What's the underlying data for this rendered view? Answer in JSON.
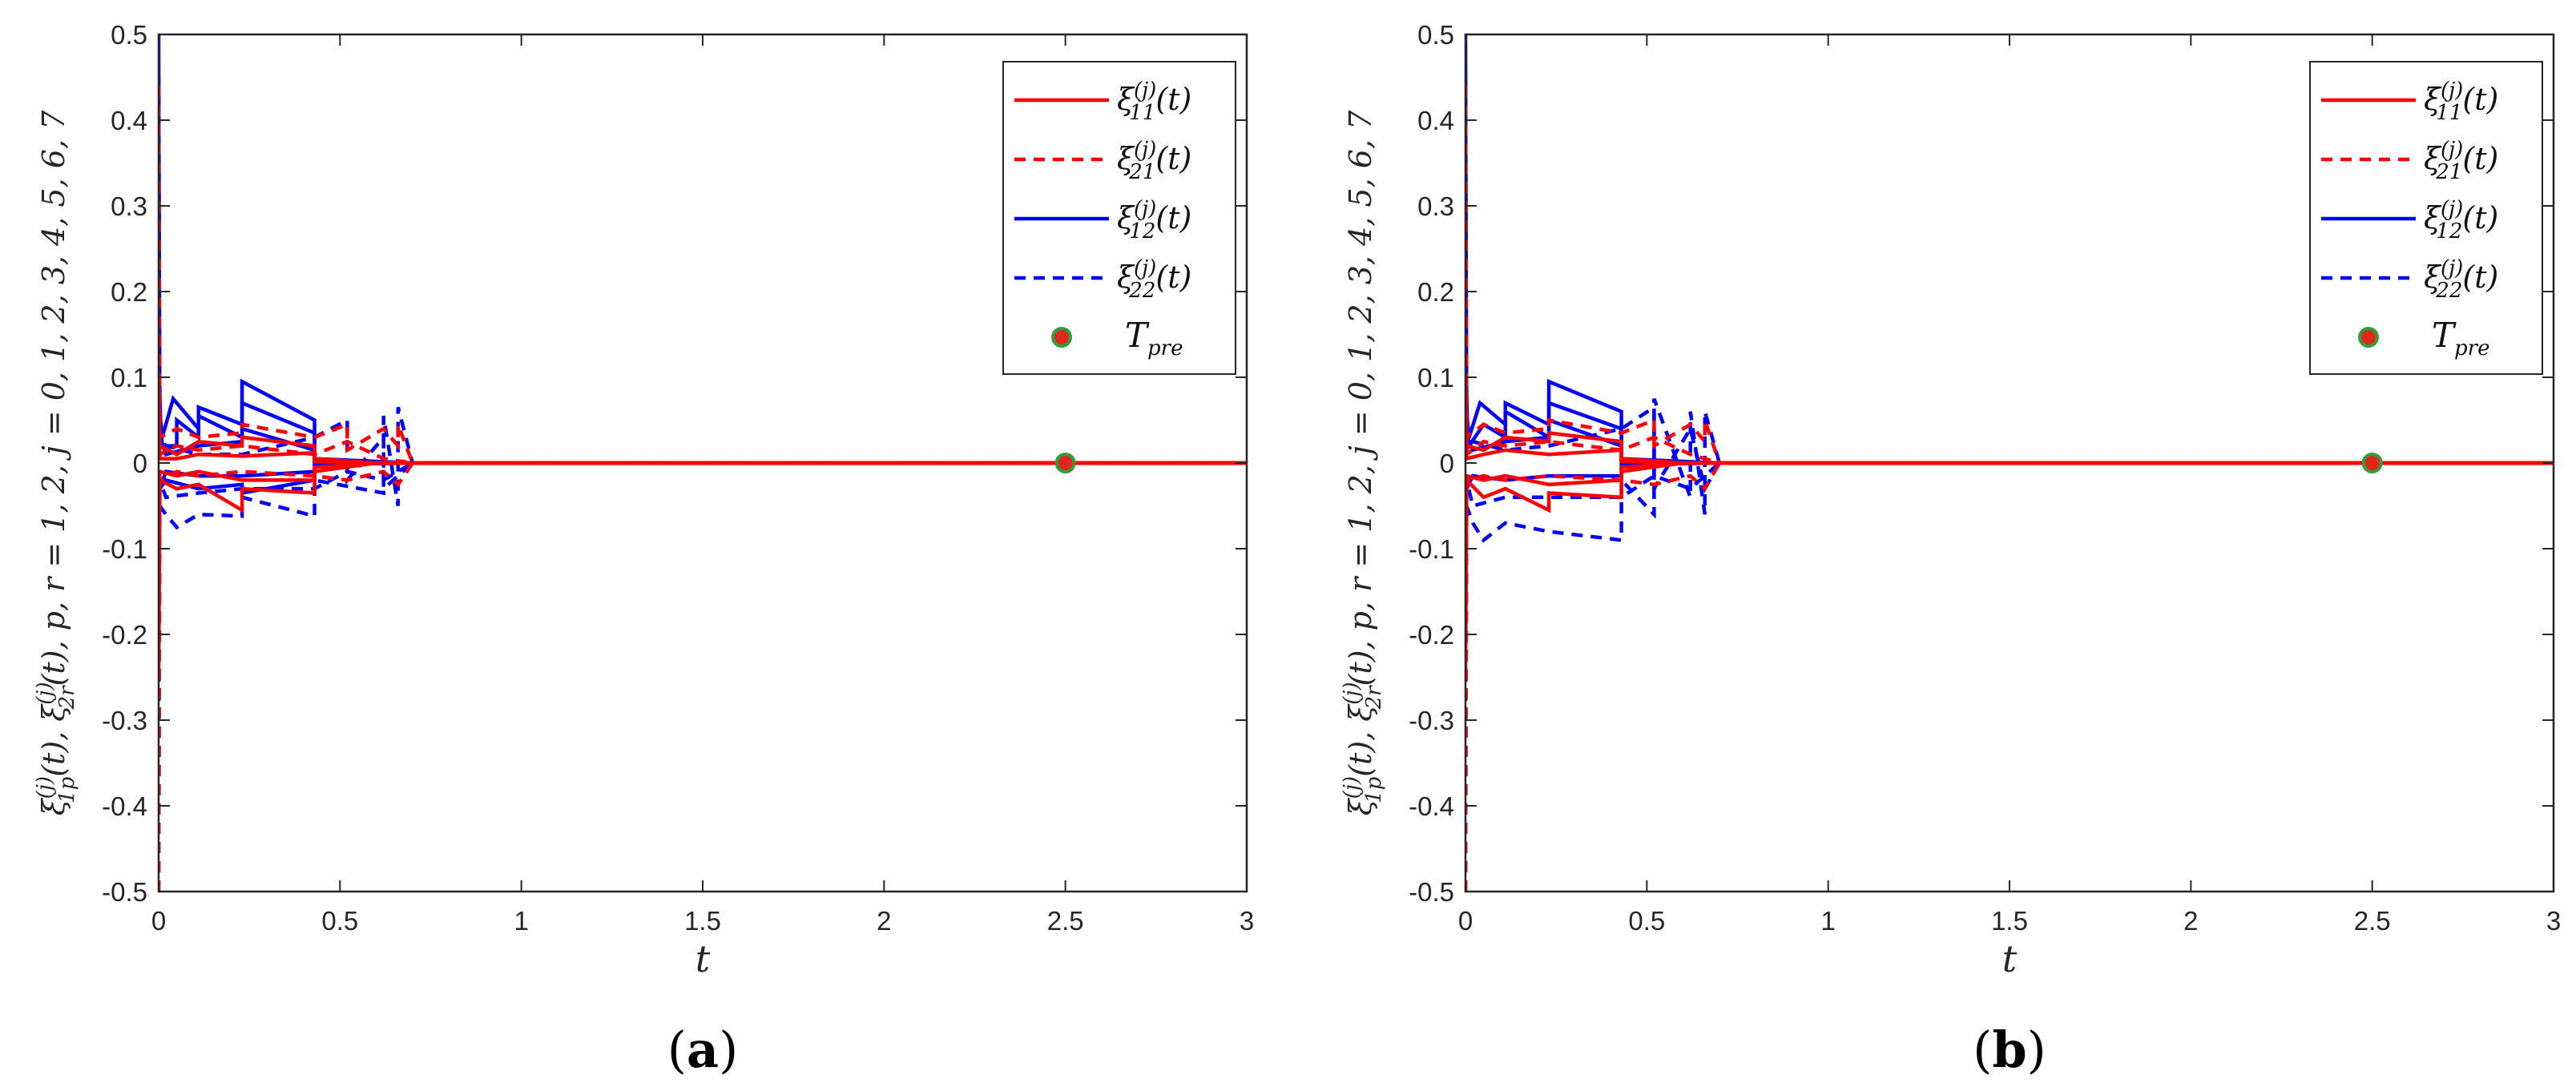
{
  "colors": {
    "red": "#ff0000",
    "blue": "#0000ff",
    "marker_fill": "#e1271b",
    "marker_edge": "#2e9e3e"
  },
  "chart_data": [
    {
      "type": "line",
      "panel_label": "(a)",
      "panel_letter": "a",
      "xlabel": "t",
      "ylabel": "ξ1p(j)(t), ξ2r(j)(t),  p, r = 1, 2,  j = 0, 1, 2, 3, 4, 5, 6, 7",
      "xlim": [
        0,
        3
      ],
      "ylim": [
        -0.5,
        0.5
      ],
      "xticks": [
        "0",
        "0.5",
        "1",
        "1.5",
        "2",
        "2.5",
        "3"
      ],
      "yticks": [
        "-0.5",
        "-0.4",
        "-0.3",
        "-0.2",
        "-0.1",
        "0",
        "0.1",
        "0.2",
        "0.3",
        "0.4",
        "0.5"
      ],
      "legend_position": "top-right",
      "legend": [
        "ξ11(j)(t)",
        "ξ21(j)(t)",
        "ξ12(j)(t)",
        "ξ22(j)(t)",
        "Tpre"
      ],
      "marker": {
        "name": "Tpre",
        "x": 2.5,
        "y": 0
      },
      "series": [
        {
          "color": "#0000ff",
          "dash": "solid",
          "x": [
            0,
            0.002,
            0.005,
            0.01,
            0.01,
            0.04,
            0.11,
            0.11,
            0.23,
            0.23,
            0.43,
            0.43,
            0.7,
            3
          ],
          "y": [
            0.5,
            0.1,
            0.05,
            0.03,
            0.03,
            0.075,
            0.04,
            0.065,
            0.045,
            0.095,
            0.05,
            0.003,
            0,
            0
          ]
        },
        {
          "color": "#0000ff",
          "dash": "solid",
          "x": [
            0,
            0.003,
            0.01,
            0.05,
            0.05,
            0.11,
            0.11,
            0.23,
            0.23,
            0.43,
            0.43,
            0.7,
            3
          ],
          "y": [
            0.45,
            0.06,
            0.02,
            0.02,
            0.05,
            0.03,
            0.055,
            0.03,
            0.07,
            0.035,
            0.005,
            0,
            0
          ]
        },
        {
          "color": "#0000ff",
          "dash": "solid",
          "x": [
            0,
            0.003,
            0.02,
            0.11,
            0.23,
            0.23,
            0.43,
            0.43,
            0.7,
            3
          ],
          "y": [
            0.3,
            0.03,
            0.01,
            0.02,
            0.025,
            0.04,
            0.015,
            0.002,
            0,
            0
          ]
        },
        {
          "color": "#0000ff",
          "dash": "solid",
          "x": [
            0,
            0.003,
            0.02,
            0.11,
            0.23,
            0.43,
            0.43,
            0.7,
            3
          ],
          "y": [
            -0.2,
            -0.03,
            -0.01,
            -0.015,
            -0.015,
            -0.01,
            -0.002,
            0,
            0
          ]
        },
        {
          "color": "#0000ff",
          "dash": "solid",
          "x": [
            0,
            0.003,
            0.02,
            0.11,
            0.23,
            0.23,
            0.43,
            0.43,
            0.7,
            3
          ],
          "y": [
            -0.1,
            -0.03,
            -0.02,
            -0.03,
            -0.025,
            -0.035,
            -0.02,
            0,
            0,
            0
          ]
        },
        {
          "color": "#0000ff",
          "dash": "dashed",
          "x": [
            0,
            0.003,
            0.02,
            0.05,
            0.11,
            0.23,
            0.23,
            0.43,
            0.43,
            0.62,
            0.62,
            0.66,
            0.66,
            0.7,
            3
          ],
          "y": [
            -0.5,
            -0.05,
            -0.06,
            -0.075,
            -0.06,
            -0.062,
            -0.04,
            -0.062,
            -0.02,
            -0.035,
            0.055,
            -0.05,
            0.065,
            0,
            0
          ]
        },
        {
          "color": "#0000ff",
          "dash": "dashed",
          "x": [
            0,
            0.003,
            0.02,
            0.11,
            0.23,
            0.43,
            0.52,
            0.52,
            0.62,
            0.62,
            0.7,
            3
          ],
          "y": [
            0.38,
            0.03,
            0.02,
            0.01,
            0.01,
            0.03,
            0.05,
            -0.02,
            0.03,
            -0.03,
            0,
            0
          ]
        },
        {
          "color": "#0000ff",
          "dash": "dashed",
          "x": [
            0,
            0.003,
            0.02,
            0.11,
            0.23,
            0.43,
            0.52,
            0.62,
            0.7,
            3
          ],
          "y": [
            -0.3,
            -0.02,
            -0.04,
            -0.035,
            -0.03,
            -0.03,
            -0.01,
            -0.02,
            0,
            0
          ]
        },
        {
          "color": "#ff0000",
          "dash": "solid",
          "x": [
            0,
            0.003,
            0.05,
            0.11,
            0.23,
            0.23,
            0.43,
            0.43,
            0.6,
            1.2,
            3
          ],
          "y": [
            0.1,
            0.02,
            0.01,
            0.025,
            0.02,
            0.03,
            0.02,
            0.005,
            0,
            0,
            0
          ]
        },
        {
          "color": "#ff0000",
          "dash": "solid",
          "x": [
            0,
            0.003,
            0.05,
            0.11,
            0.23,
            0.23,
            0.43,
            0.43,
            0.6,
            3
          ],
          "y": [
            -0.25,
            -0.02,
            -0.03,
            -0.025,
            -0.055,
            -0.03,
            -0.035,
            -0.01,
            0,
            0
          ]
        },
        {
          "color": "#ff0000",
          "dash": "solid",
          "x": [
            0,
            0.003,
            0.05,
            0.11,
            0.23,
            0.43,
            0.43,
            0.6,
            3
          ],
          "y": [
            0.05,
            0.005,
            0.005,
            0.01,
            0.008,
            0.012,
            0.002,
            0,
            0
          ]
        },
        {
          "color": "#ff0000",
          "dash": "solid",
          "x": [
            0,
            0.003,
            0.05,
            0.11,
            0.23,
            0.43,
            0.43,
            0.6,
            3
          ],
          "y": [
            -0.08,
            -0.01,
            -0.015,
            -0.01,
            -0.02,
            -0.02,
            -0.005,
            0,
            0
          ]
        },
        {
          "color": "#ff0000",
          "dash": "dashed",
          "x": [
            0,
            0.003,
            0.05,
            0.11,
            0.23,
            0.23,
            0.43,
            0.52,
            0.52,
            0.62,
            0.66,
            0.66,
            0.7,
            3
          ],
          "y": [
            0.44,
            0.03,
            0.04,
            0.03,
            0.035,
            0.045,
            0.03,
            0.045,
            0.015,
            0.04,
            0.02,
            0.045,
            0,
            0
          ]
        },
        {
          "color": "#ff0000",
          "dash": "dashed",
          "x": [
            0,
            0.003,
            0.05,
            0.11,
            0.23,
            0.43,
            0.52,
            0.62,
            0.66,
            0.7,
            3
          ],
          "y": [
            -0.5,
            -0.02,
            -0.01,
            -0.015,
            -0.01,
            -0.015,
            -0.02,
            -0.01,
            -0.025,
            0,
            0
          ]
        },
        {
          "color": "#ff0000",
          "dash": "dashed",
          "x": [
            0,
            0.003,
            0.05,
            0.11,
            0.23,
            0.43,
            0.52,
            0.62,
            0.7,
            3
          ],
          "y": [
            0.15,
            0.01,
            0.02,
            0.015,
            0.02,
            0.01,
            0.025,
            0.005,
            0,
            0
          ]
        }
      ]
    },
    {
      "type": "line",
      "panel_label": "(b)",
      "panel_letter": "b",
      "xlabel": "t",
      "ylabel": "ξ1p(j)(t), ξ2r(j)(t),  p, r = 1, 2,  j = 0, 1, 2, 3, 4, 5, 6, 7",
      "xlim": [
        0,
        3
      ],
      "ylim": [
        -0.5,
        0.5
      ],
      "xticks": [
        "0",
        "0.5",
        "1",
        "1.5",
        "2",
        "2.5",
        "3"
      ],
      "yticks": [
        "-0.5",
        "-0.4",
        "-0.3",
        "-0.2",
        "-0.1",
        "0",
        "0.1",
        "0.2",
        "0.3",
        "0.4",
        "0.5"
      ],
      "legend_position": "top-right",
      "legend": [
        "ξ11(j)(t)",
        "ξ21(j)(t)",
        "ξ12(j)(t)",
        "ξ22(j)(t)",
        "Tpre"
      ],
      "marker": {
        "name": "Tpre",
        "x": 2.5,
        "y": 0
      },
      "series": [
        {
          "color": "#0000ff",
          "dash": "solid",
          "x": [
            0,
            0.002,
            0.005,
            0.01,
            0.04,
            0.11,
            0.11,
            0.23,
            0.23,
            0.43,
            0.43,
            0.7,
            3
          ],
          "y": [
            0.5,
            0.1,
            0.05,
            0.03,
            0.07,
            0.045,
            0.07,
            0.045,
            0.095,
            0.06,
            0.003,
            0,
            0
          ]
        },
        {
          "color": "#0000ff",
          "dash": "solid",
          "x": [
            0,
            0.003,
            0.01,
            0.05,
            0.11,
            0.11,
            0.23,
            0.23,
            0.43,
            0.43,
            0.7,
            3
          ],
          "y": [
            0.45,
            0.06,
            0.02,
            0.045,
            0.03,
            0.06,
            0.03,
            0.07,
            0.04,
            0.005,
            0,
            0
          ]
        },
        {
          "color": "#0000ff",
          "dash": "solid",
          "x": [
            0,
            0.003,
            0.02,
            0.11,
            0.23,
            0.23,
            0.43,
            0.43,
            0.7,
            3
          ],
          "y": [
            0.3,
            0.03,
            0.015,
            0.025,
            0.03,
            0.05,
            0.02,
            0.002,
            0,
            0
          ]
        },
        {
          "color": "#0000ff",
          "dash": "solid",
          "x": [
            0,
            0.003,
            0.02,
            0.11,
            0.23,
            0.43,
            0.43,
            0.7,
            3
          ],
          "y": [
            -0.2,
            -0.03,
            -0.015,
            -0.02,
            -0.015,
            -0.015,
            -0.002,
            0,
            0
          ]
        },
        {
          "color": "#0000ff",
          "dash": "dashed",
          "x": [
            0,
            0.003,
            0.02,
            0.05,
            0.11,
            0.23,
            0.43,
            0.43,
            0.52,
            0.52,
            0.62,
            0.62,
            0.66,
            0.66,
            0.7,
            3
          ],
          "y": [
            -0.5,
            -0.05,
            -0.07,
            -0.09,
            -0.07,
            -0.08,
            -0.09,
            -0.02,
            -0.06,
            0.075,
            -0.04,
            0.06,
            -0.06,
            0.06,
            0,
            0
          ]
        },
        {
          "color": "#0000ff",
          "dash": "dashed",
          "x": [
            0,
            0.003,
            0.02,
            0.11,
            0.23,
            0.43,
            0.52,
            0.52,
            0.62,
            0.66,
            0.7,
            3
          ],
          "y": [
            0.38,
            0.03,
            0.025,
            0.015,
            0.02,
            0.04,
            0.065,
            -0.03,
            0.04,
            -0.03,
            0,
            0
          ]
        },
        {
          "color": "#0000ff",
          "dash": "dashed",
          "x": [
            0,
            0.003,
            0.02,
            0.11,
            0.23,
            0.43,
            0.52,
            0.62,
            0.7,
            3
          ],
          "y": [
            -0.3,
            -0.02,
            -0.05,
            -0.04,
            -0.04,
            -0.04,
            -0.015,
            -0.03,
            0,
            0
          ]
        },
        {
          "color": "#ff0000",
          "dash": "solid",
          "x": [
            0,
            0.003,
            0.05,
            0.11,
            0.23,
            0.23,
            0.43,
            0.43,
            0.6,
            1.2,
            3
          ],
          "y": [
            0.1,
            0.02,
            0.015,
            0.03,
            0.025,
            0.035,
            0.025,
            0.005,
            0,
            0,
            0
          ]
        },
        {
          "color": "#ff0000",
          "dash": "solid",
          "x": [
            0,
            0.003,
            0.05,
            0.11,
            0.23,
            0.23,
            0.43,
            0.43,
            0.6,
            3
          ],
          "y": [
            -0.25,
            -0.02,
            -0.04,
            -0.03,
            -0.055,
            -0.035,
            -0.04,
            -0.01,
            0,
            0
          ]
        },
        {
          "color": "#ff0000",
          "dash": "solid",
          "x": [
            0,
            0.003,
            0.05,
            0.11,
            0.23,
            0.43,
            0.43,
            0.6,
            3
          ],
          "y": [
            0.05,
            0.005,
            0.01,
            0.015,
            0.01,
            0.015,
            0.002,
            0,
            0
          ]
        },
        {
          "color": "#ff0000",
          "dash": "solid",
          "x": [
            0,
            0.003,
            0.05,
            0.11,
            0.23,
            0.43,
            0.43,
            0.6,
            3
          ],
          "y": [
            -0.08,
            -0.015,
            -0.02,
            -0.015,
            -0.025,
            -0.02,
            -0.005,
            0,
            0
          ]
        },
        {
          "color": "#ff0000",
          "dash": "dashed",
          "x": [
            0,
            0.003,
            0.05,
            0.11,
            0.23,
            0.23,
            0.43,
            0.52,
            0.52,
            0.62,
            0.66,
            0.66,
            0.7,
            3
          ],
          "y": [
            0.44,
            0.03,
            0.045,
            0.035,
            0.04,
            0.05,
            0.035,
            0.05,
            0.02,
            0.045,
            0.025,
            0.05,
            0,
            0
          ]
        },
        {
          "color": "#ff0000",
          "dash": "dashed",
          "x": [
            0,
            0.003,
            0.05,
            0.11,
            0.23,
            0.43,
            0.52,
            0.62,
            0.66,
            0.7,
            3
          ],
          "y": [
            -0.5,
            -0.02,
            -0.015,
            -0.02,
            -0.015,
            -0.02,
            -0.025,
            -0.015,
            -0.03,
            0,
            0
          ]
        },
        {
          "color": "#ff0000",
          "dash": "dashed",
          "x": [
            0,
            0.003,
            0.05,
            0.11,
            0.23,
            0.43,
            0.52,
            0.62,
            0.7,
            3
          ],
          "y": [
            0.15,
            0.01,
            0.025,
            0.02,
            0.025,
            0.015,
            0.03,
            0.01,
            0,
            0
          ]
        }
      ]
    }
  ]
}
